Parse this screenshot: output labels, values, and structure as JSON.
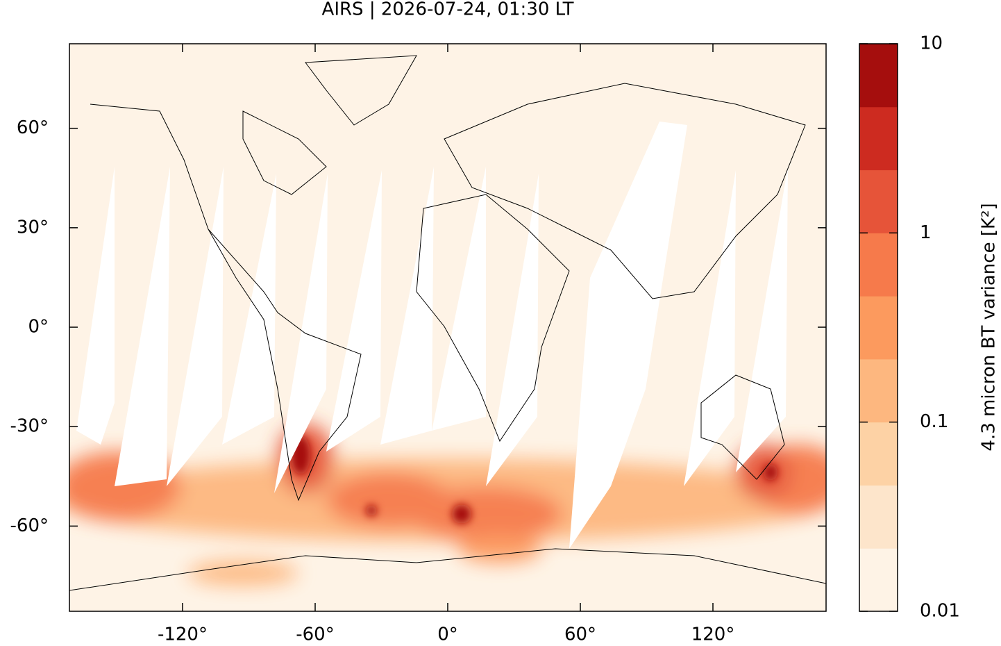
{
  "chart_data": {
    "type": "map",
    "title": "AIRS | 2026-07-24, 01:30 LT",
    "xlim": [
      -171.2,
      171.2
    ],
    "ylim": [
      -85.7,
      85.5
    ],
    "xticks": [
      {
        "value": -120,
        "label": "-120°"
      },
      {
        "value": -60,
        "label": "-60°"
      },
      {
        "value": 0,
        "label": "0°"
      },
      {
        "value": 60,
        "label": "60°"
      },
      {
        "value": 120,
        "label": "120°"
      }
    ],
    "yticks": [
      {
        "value": -60,
        "label": "-60°"
      },
      {
        "value": -30,
        "label": "-30°"
      },
      {
        "value": 0,
        "label": "0°"
      },
      {
        "value": 30,
        "label": "30°"
      },
      {
        "value": 60,
        "label": "60°"
      }
    ],
    "colorbar": {
      "label": "4.3 micron BT variance [K²]",
      "clim": [
        0.01,
        10
      ],
      "log": true,
      "ticks": [
        0.01,
        0.1,
        1,
        10
      ],
      "colors": [
        "#fef3e6",
        "#fde5cb",
        "#fdd2a5",
        "#fdb77f",
        "#fc9a5e",
        "#f67a4b",
        "#e65439",
        "#cd2b20",
        "#a50e0d"
      ]
    }
  }
}
